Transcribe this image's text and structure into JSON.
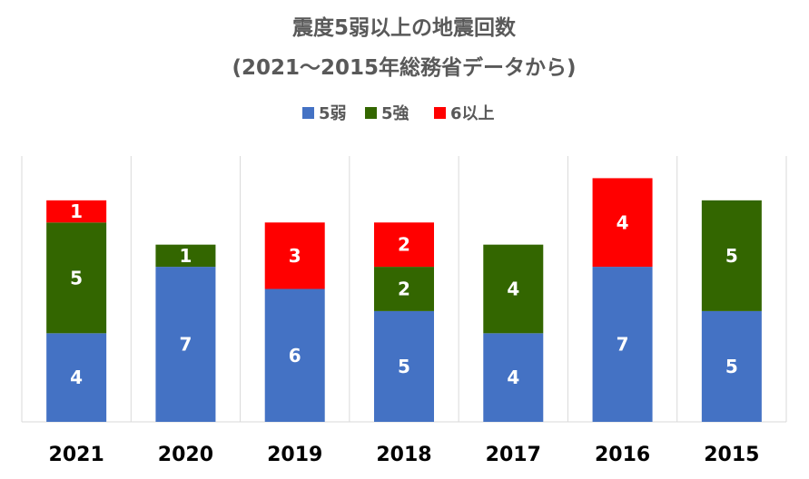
{
  "chart_data": {
    "type": "bar",
    "stacked": true,
    "title": "震度5弱以上の地震回数",
    "subtitle": "(2021～2015年総務省データから)",
    "categories": [
      "2021",
      "2020",
      "2019",
      "2018",
      "2017",
      "2016",
      "2015"
    ],
    "series": [
      {
        "name": "5弱",
        "color": "#4472C4",
        "values": [
          4,
          7,
          6,
          5,
          4,
          7,
          5
        ]
      },
      {
        "name": "5強",
        "color": "#336600",
        "values": [
          5,
          1,
          0,
          2,
          4,
          0,
          5
        ]
      },
      {
        "name": "6以上",
        "color": "#FF0000",
        "values": [
          1,
          0,
          3,
          2,
          0,
          4,
          0
        ]
      }
    ],
    "ylim": [
      0,
      12
    ],
    "legend_position": "top",
    "grid": "vertical category separators"
  }
}
